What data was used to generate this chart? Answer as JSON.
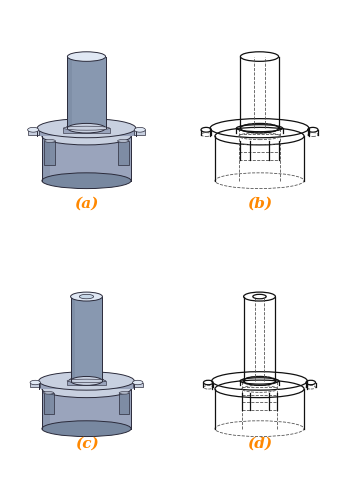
{
  "background_color": "#ffffff",
  "labels": [
    "(a)",
    "(b)",
    "(c)",
    "(d)"
  ],
  "label_color": "#ff8800",
  "label_fontsize": 11,
  "solid_body_color": "#9aa4bc",
  "solid_light_color": "#c8d0e0",
  "solid_dark_color": "#7888a0",
  "solid_highlight": "#e0e8f4",
  "solid_edge_color": "#2a2a3a",
  "wire_color": "#111111",
  "wire_dash_color": "#555555"
}
